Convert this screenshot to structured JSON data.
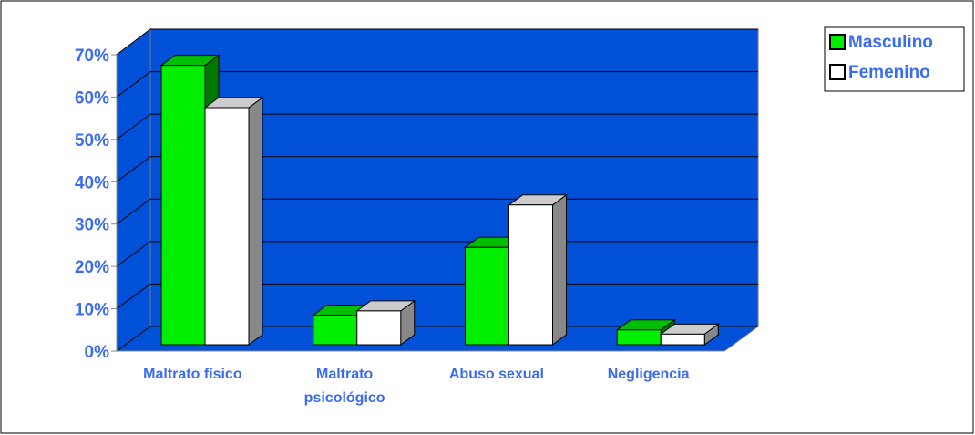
{
  "chart_data": {
    "type": "bar3d",
    "categories": [
      "Maltrato físico",
      "Maltrato psicológico",
      "Abuso sexual",
      "Negligencia"
    ],
    "series": [
      {
        "name": "Masculino",
        "color": "#00ee00",
        "values": [
          66,
          7,
          23,
          3.5
        ]
      },
      {
        "name": "Femenino",
        "color": "#ffffff",
        "values": [
          56,
          8,
          33,
          2.5
        ]
      }
    ],
    "ylim": [
      0,
      70
    ],
    "yticks": [
      {
        "value": 0,
        "label": "0%"
      },
      {
        "value": 10,
        "label": "10%"
      },
      {
        "value": 20,
        "label": "20%"
      },
      {
        "value": 30,
        "label": "30%"
      },
      {
        "value": 40,
        "label": "40%"
      },
      {
        "value": 50,
        "label": "50%"
      },
      {
        "value": 60,
        "label": "60%"
      },
      {
        "value": 70,
        "label": "70%"
      }
    ],
    "grid": true,
    "wall_color": "#0050d8",
    "legend": "top-right"
  }
}
